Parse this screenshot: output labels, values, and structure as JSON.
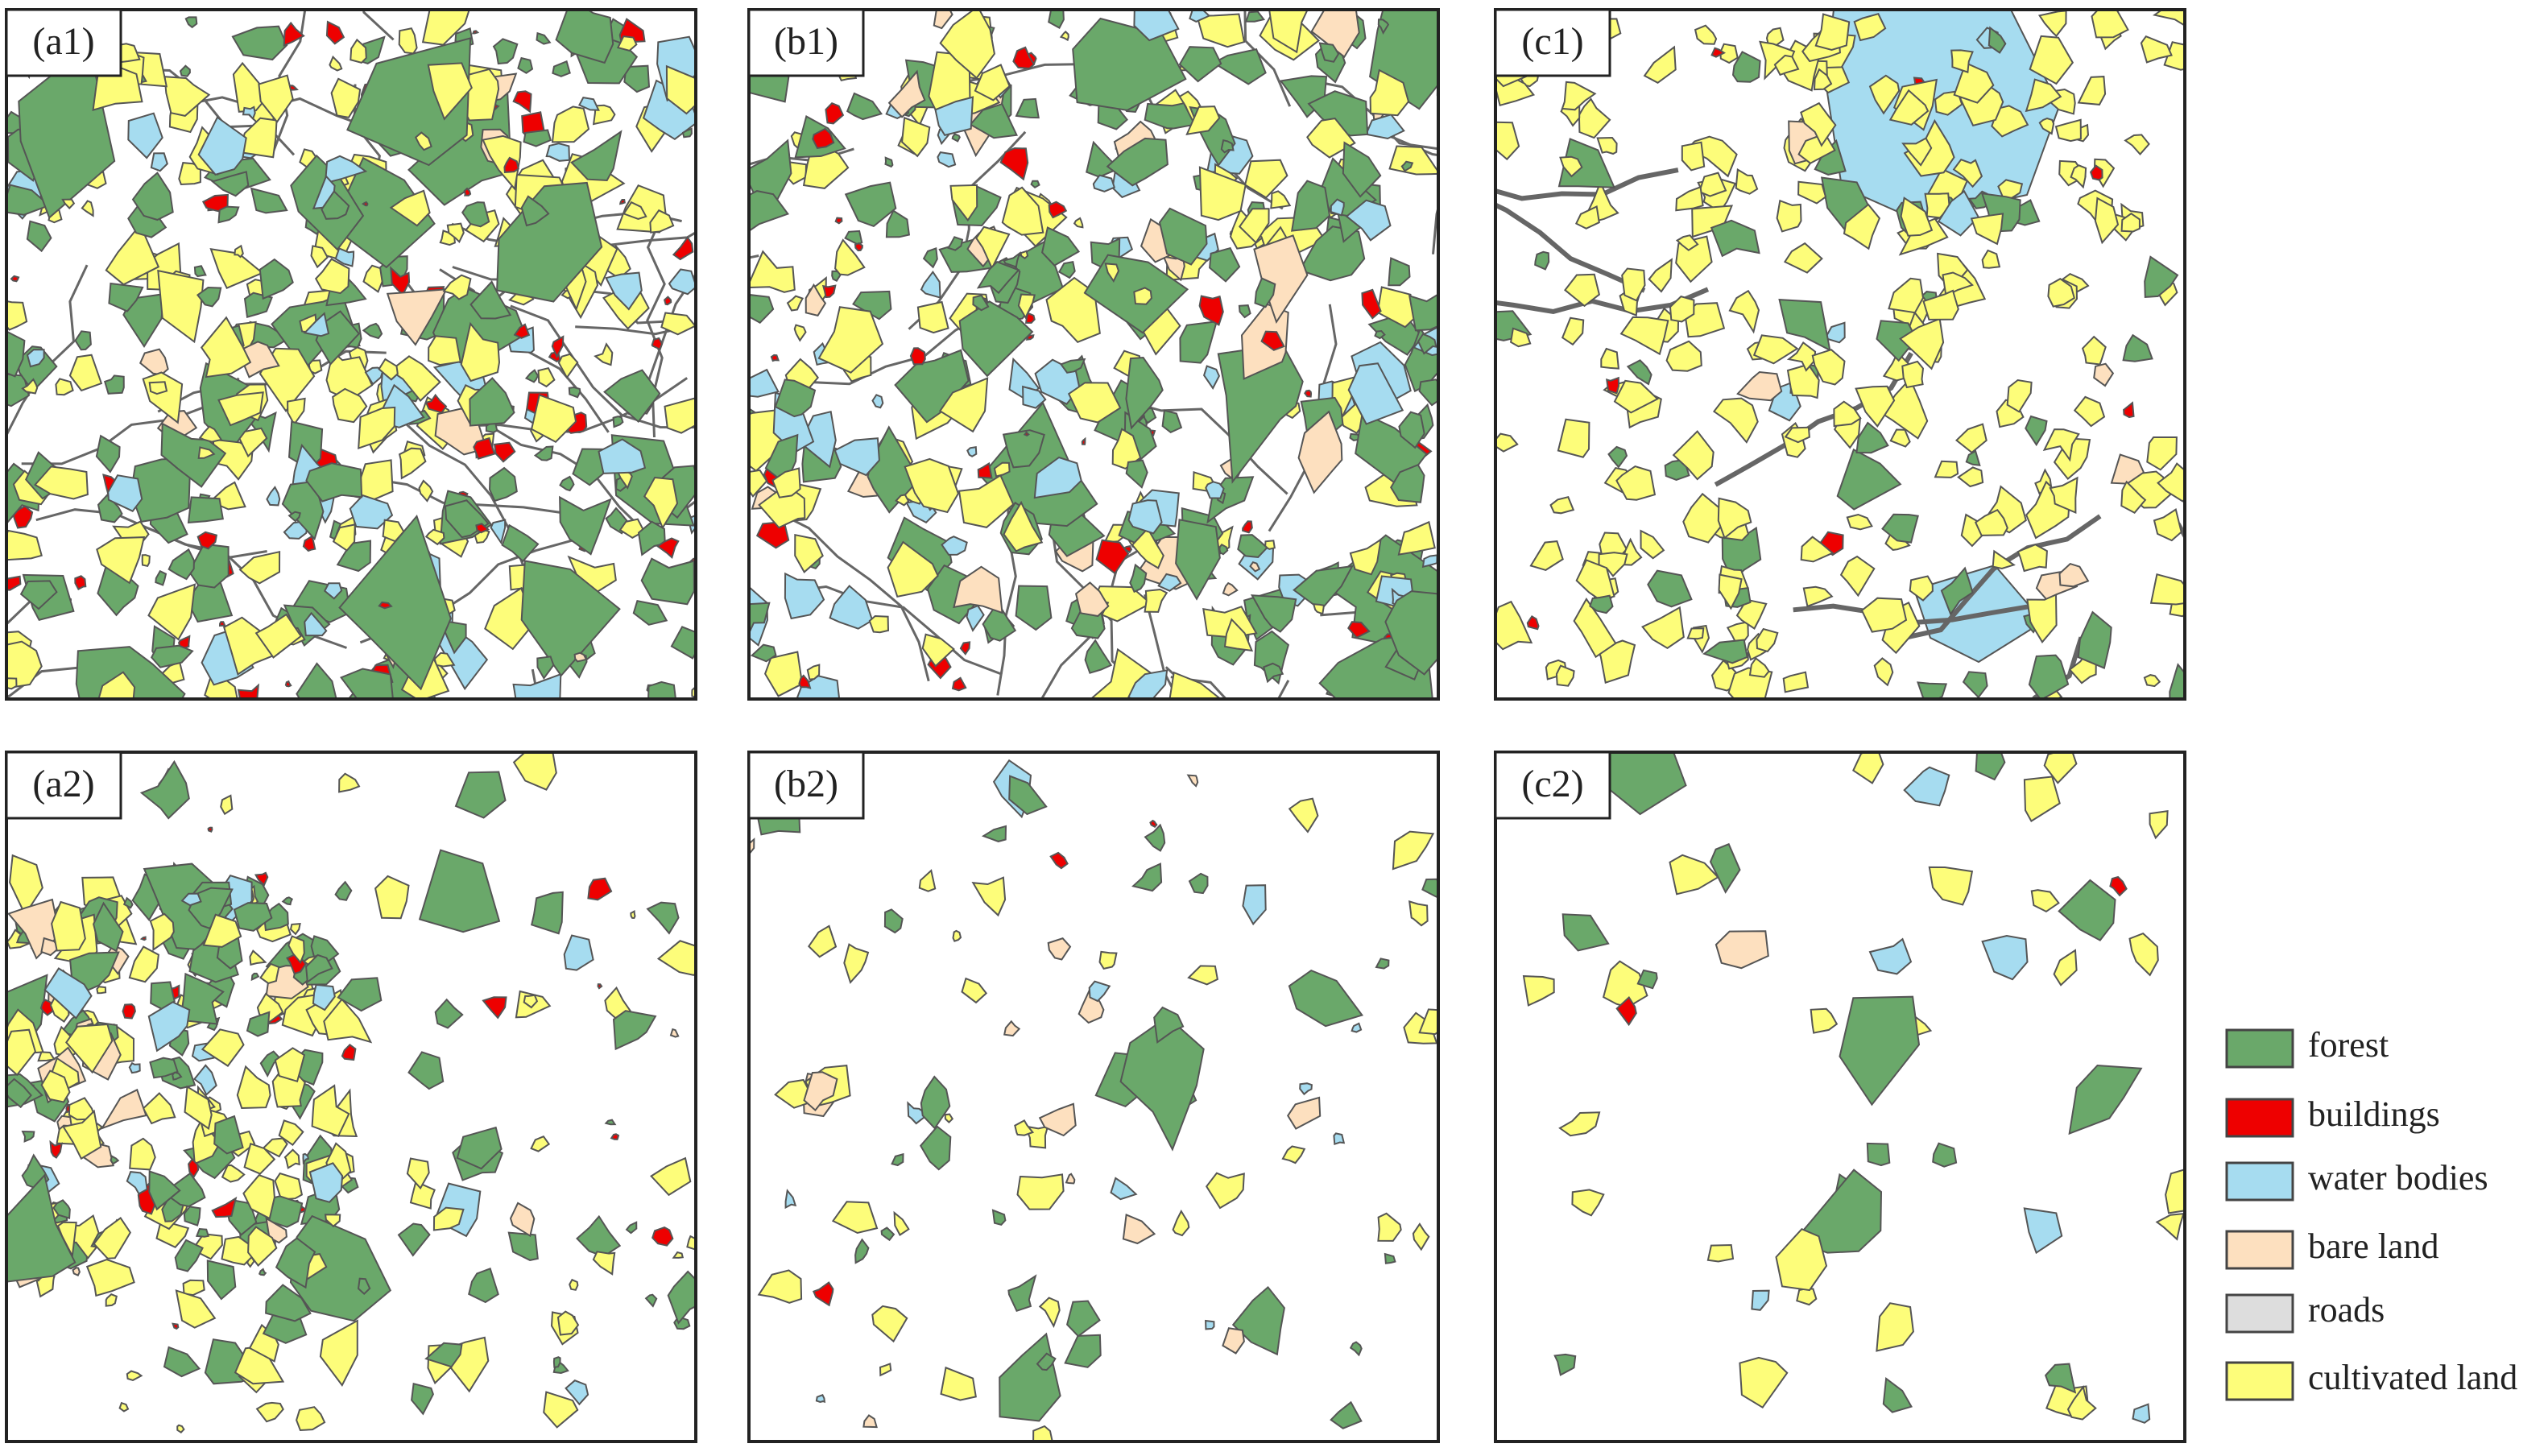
{
  "panels": [
    {
      "label": "(a1)"
    },
    {
      "label": "(b1)"
    },
    {
      "label": "(c1)"
    },
    {
      "label": "(a2)"
    },
    {
      "label": "(b2)"
    },
    {
      "label": "(c2)"
    }
  ],
  "legend": [
    {
      "label": "forest",
      "color": "#6aa86a"
    },
    {
      "label": "buildings",
      "color": "#ee0000"
    },
    {
      "label": "water bodies",
      "color": "#a6dcf0"
    },
    {
      "label": "bare land",
      "color": "#fde0bf"
    },
    {
      "label": "roads",
      "color": "#dddddd"
    },
    {
      "label": "cultivated land",
      "color": "#fdfd7a"
    }
  ]
}
